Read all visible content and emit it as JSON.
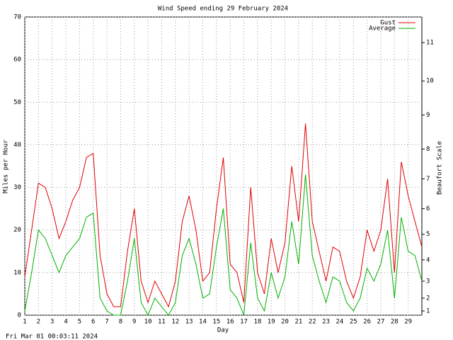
{
  "chart_data": {
    "type": "line",
    "title": "Wind Speed ending 29 February 2024",
    "y_label": "Miles per Hour",
    "y2_label": "Beaufort Scale",
    "x_label": "Day",
    "timestamp": "Fri Mar 01 00:03:11 2024",
    "x": [
      1,
      1.5,
      2,
      2.5,
      3,
      3.5,
      4,
      4.5,
      5,
      5.5,
      6,
      6.5,
      7,
      7.5,
      8,
      8.5,
      9,
      9.5,
      10,
      10.5,
      11,
      11.5,
      12,
      12.5,
      13,
      13.5,
      14,
      14.5,
      15,
      15.5,
      16,
      16.5,
      17,
      17.5,
      18,
      18.5,
      19,
      19.5,
      20,
      20.5,
      21,
      21.5,
      22,
      22.5,
      23,
      23.5,
      24,
      24.5,
      25,
      25.5,
      26,
      26.5,
      27,
      27.5,
      28,
      28.5,
      29,
      29.5,
      30
    ],
    "series": [
      {
        "name": "Gust",
        "color": "#e00000",
        "values": [
          9,
          20,
          31,
          30,
          25,
          18,
          22,
          27,
          30,
          37,
          38,
          14,
          5,
          2,
          2,
          15,
          25,
          8,
          3,
          8,
          5,
          2,
          8,
          22,
          28,
          20,
          8,
          10,
          25,
          37,
          12,
          10,
          3,
          30,
          10,
          5,
          18,
          10,
          17,
          35,
          22,
          45,
          22,
          15,
          8,
          16,
          15,
          8,
          4,
          9,
          20,
          15,
          20,
          32,
          10,
          36,
          28,
          22,
          16
        ]
      },
      {
        "name": "Average",
        "color": "#00b000",
        "values": [
          1,
          10,
          20,
          18,
          14,
          10,
          14,
          16,
          18,
          23,
          24,
          4,
          1,
          0,
          0,
          8,
          18,
          3,
          0,
          4,
          2,
          0,
          3,
          14,
          18,
          12,
          4,
          5,
          16,
          25,
          6,
          4,
          0,
          17,
          4,
          1,
          10,
          4,
          9,
          22,
          12,
          33,
          14,
          8,
          3,
          9,
          8,
          3,
          1,
          4,
          11,
          8,
          12,
          20,
          4,
          23,
          15,
          14,
          8
        ]
      }
    ],
    "xlim": [
      1,
      30
    ],
    "xticks": [
      1,
      2,
      3,
      4,
      5,
      6,
      7,
      8,
      9,
      10,
      11,
      12,
      13,
      14,
      15,
      16,
      17,
      18,
      19,
      20,
      21,
      22,
      23,
      24,
      25,
      26,
      27,
      28,
      29
    ],
    "ylim": [
      0,
      70
    ],
    "yticks": [
      0,
      10,
      20,
      30,
      40,
      50,
      60,
      70
    ],
    "y2lim": [
      0,
      70
    ],
    "y2ticks": [
      1,
      {
        "value": 4,
        "label": "2"
      },
      {
        "value": 8,
        "label": "3"
      },
      {
        "value": 13,
        "label": "4"
      },
      {
        "value": 19,
        "label": "5"
      },
      {
        "value": 25,
        "label": "6"
      },
      {
        "value": 32,
        "label": "7"
      },
      {
        "value": 39,
        "label": "8"
      },
      {
        "value": 47,
        "label": "9"
      },
      {
        "value": 55,
        "label": "10"
      },
      {
        "value": 64,
        "label": "11"
      }
    ],
    "grid": true,
    "legend": "top-right"
  }
}
